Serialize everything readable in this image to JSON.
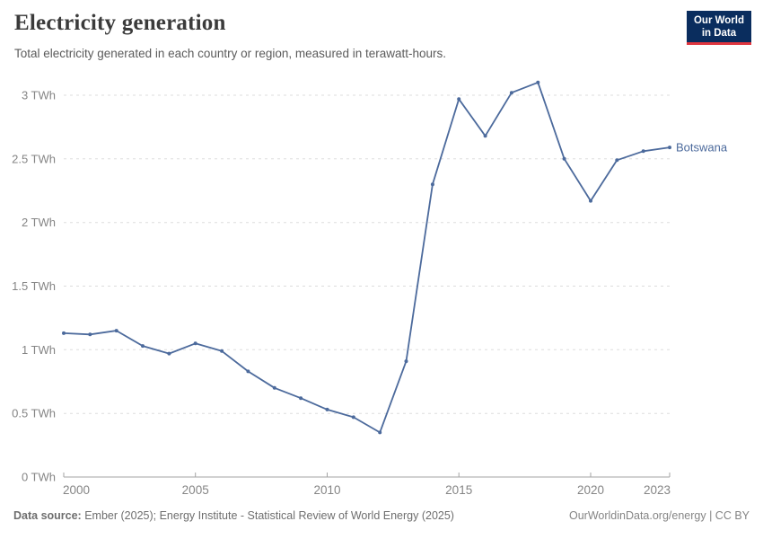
{
  "header": {
    "title": "Electricity generation",
    "subtitle": "Total electricity generated in each country or region, measured in terawatt-hours."
  },
  "logo": {
    "line1": "Our World",
    "line2": "in Data"
  },
  "chart_data": {
    "type": "line",
    "title": "Electricity generation",
    "subtitle": "Total electricity generated in each country or region, measured in terawatt-hours.",
    "unit": "TWh",
    "x": [
      2000,
      2001,
      2002,
      2003,
      2004,
      2005,
      2006,
      2007,
      2008,
      2009,
      2010,
      2011,
      2012,
      2013,
      2014,
      2015,
      2016,
      2017,
      2018,
      2019,
      2020,
      2021,
      2022,
      2023
    ],
    "series": [
      {
        "name": "Botswana",
        "values": [
          1.13,
          1.12,
          1.15,
          1.03,
          0.97,
          1.05,
          0.99,
          0.83,
          0.7,
          0.62,
          0.53,
          0.47,
          0.35,
          0.91,
          2.3,
          2.97,
          2.68,
          3.02,
          3.1,
          2.5,
          2.17,
          2.49,
          2.56,
          2.59
        ]
      }
    ],
    "ylim": [
      0,
      3
    ],
    "y_ticks": [
      0,
      0.5,
      1,
      1.5,
      2,
      2.5,
      3
    ],
    "x_ticks": [
      2000,
      2005,
      2010,
      2015,
      2020,
      2023
    ],
    "grid": "horizontal dashed",
    "legend": "end-of-line label"
  },
  "footer": {
    "datasource_label": "Data source:",
    "datasource_text": " Ember (2025); Energy Institute - Statistical Review of World Energy (2025)",
    "credit": "OurWorldinData.org/energy | CC BY"
  },
  "colors": {
    "line": "#4c6a9c",
    "logo_bg": "#0a2d5e",
    "logo_red": "#e0363f",
    "grid": "#dddddd",
    "axis": "#a3a3a3",
    "tick_label": "#858585",
    "title_text": "#3b3b3b",
    "subtitle_text": "#5b5b5b"
  }
}
